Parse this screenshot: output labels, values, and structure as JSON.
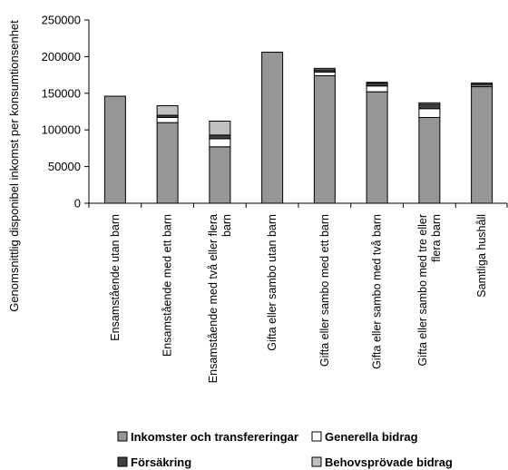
{
  "chart_data": {
    "type": "bar",
    "stacked": true,
    "ylabel": "Genomsnittlig disponibel inkomst per konsumtionsenhet",
    "ylim": [
      0,
      250000
    ],
    "yticks": [
      0,
      50000,
      100000,
      150000,
      200000,
      250000
    ],
    "ytick_labels": [
      "0",
      "50000",
      "100000",
      "150000",
      "200000",
      "250000"
    ],
    "grid": false,
    "legend_position": "bottom",
    "categories": [
      [
        "Ensamstående utan barn"
      ],
      [
        "Ensamstående med ett barn"
      ],
      [
        "Ensamstående med två eller flera",
        "barn"
      ],
      [
        "Gifta eller sambo utan barn"
      ],
      [
        "Gifta eller sambo med ett barn"
      ],
      [
        "Gifta eller sambo med två barn"
      ],
      [
        "Gifta eller sambo med tre eller",
        "flera barn"
      ],
      [
        "Samtliga hushåll"
      ]
    ],
    "series": [
      {
        "name": "Inkomster och transfereringar",
        "color": "#969696",
        "values": [
          146000,
          110000,
          77000,
          206000,
          174000,
          152000,
          117000,
          159000
        ]
      },
      {
        "name": "Generella bidrag",
        "color": "#ffffff",
        "values": [
          0,
          7000,
          11000,
          0,
          5000,
          8000,
          12000,
          2000
        ]
      },
      {
        "name": "Försäkring",
        "color": "#404040",
        "values": [
          0,
          3000,
          5000,
          0,
          3000,
          4000,
          6000,
          3000
        ]
      },
      {
        "name": "Behovsprövade bidrag",
        "color": "#c0c0c0",
        "values": [
          0,
          13000,
          19000,
          0,
          2000,
          1000,
          2000,
          0
        ]
      }
    ]
  }
}
